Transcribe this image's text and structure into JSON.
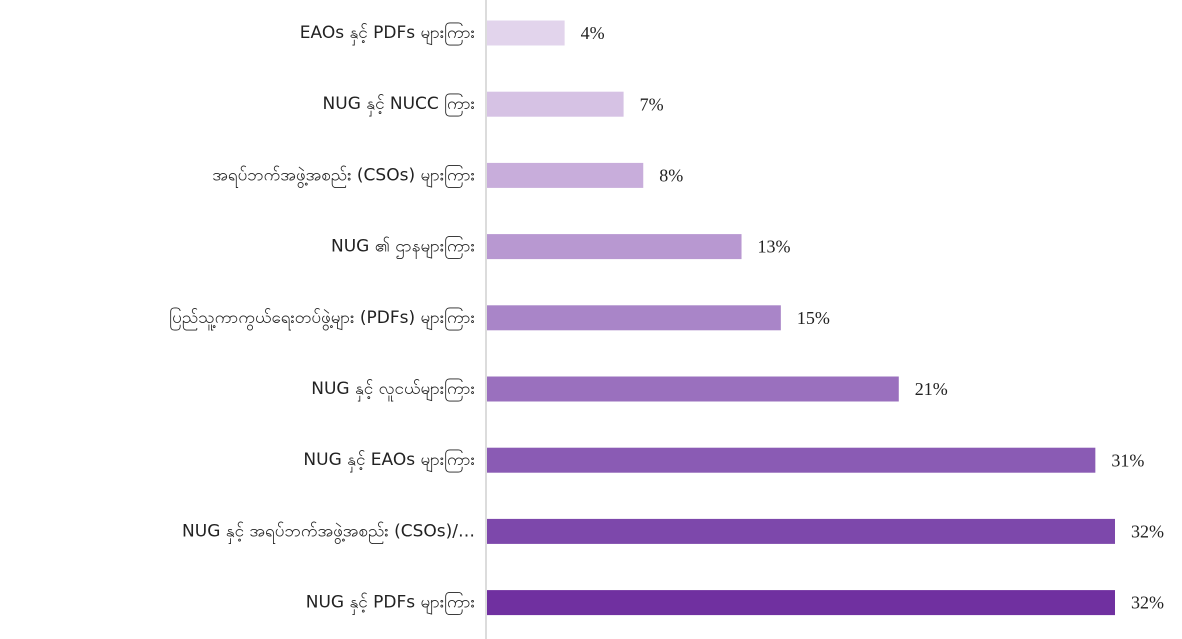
{
  "chart_data": {
    "type": "barh",
    "categories": [
      "EAOs နှင့် PDFs များကြား",
      "NUG နှင့် NUCC ကြား",
      "အရပ်ဘက်အဖွဲ့အစည်း (CSOs) များကြား",
      "NUG ၏ ဌာနများကြား",
      "ပြည်သူ့ကာကွယ်ရေးတပ်ဖွဲ့များ (PDFs) များကြား",
      "NUG နှင့် လူငယ်များကြား",
      "NUG နှင့် EAOs များကြား",
      "NUG နှင့် အရပ်ဘက်အဖွဲ့အစည်း (CSOs)/…",
      "NUG နှင့် PDFs များကြား"
    ],
    "values": [
      4,
      7,
      8,
      13,
      15,
      21,
      31,
      32,
      32
    ],
    "value_labels": [
      "4%",
      "7%",
      "8%",
      "13%",
      "15%",
      "21%",
      "31%",
      "32%",
      "32%"
    ],
    "colors": [
      "#e2d4ec",
      "#d6c2e4",
      "#c8addb",
      "#b898d1",
      "#a985c8",
      "#9a70be",
      "#8a5bb4",
      "#7d48ab",
      "#7030a0"
    ]
  }
}
